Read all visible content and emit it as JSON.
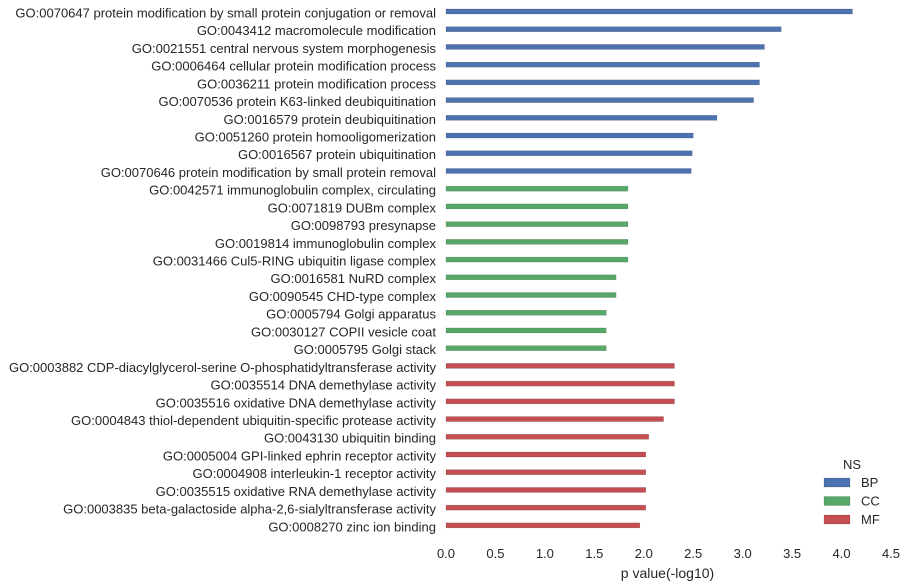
{
  "chart_data": {
    "type": "bar",
    "orientation": "horizontal",
    "xlabel": "p value(-log10)",
    "ylabel": "",
    "xlim": [
      0,
      4.5
    ],
    "xticks": [
      "0.0",
      "0.5",
      "1.0",
      "1.5",
      "2.0",
      "2.5",
      "3.0",
      "3.5",
      "4.0",
      "4.5"
    ],
    "grid": false,
    "legend": {
      "title": "NS",
      "position": "bottom-right",
      "entries": [
        {
          "name": "BP",
          "color": "#4c72b0"
        },
        {
          "name": "CC",
          "color": "#55a868"
        },
        {
          "name": "MF",
          "color": "#c44e52"
        }
      ]
    },
    "categories": [
      "GO:0070647 protein modification by small protein conjugation or removal",
      "GO:0043412 macromolecule modification",
      "GO:0021551 central nervous system morphogenesis",
      "GO:0006464 cellular protein modification process",
      "GO:0036211 protein modification process",
      "GO:0070536 protein K63-linked deubiquitination",
      "GO:0016579 protein deubiquitination",
      "GO:0051260 protein homooligomerization",
      "GO:0016567 protein ubiquitination",
      "GO:0070646 protein modification by small protein removal",
      "GO:0042571 immunoglobulin complex, circulating",
      "GO:0071819 DUBm complex",
      "GO:0098793 presynapse",
      "GO:0019814 immunoglobulin complex",
      "GO:0031466 Cul5-RING ubiquitin ligase complex",
      "GO:0016581 NuRD complex",
      "GO:0090545 CHD-type complex",
      "GO:0005794 Golgi apparatus",
      "GO:0030127 COPII vesicle coat",
      "GO:0005795 Golgi stack",
      "GO:0003882 CDP-diacylglycerol-serine O-phosphatidyltransferase activity",
      "GO:0035514 DNA demethylase activity",
      "GO:0035516 oxidative DNA demethylase activity",
      "GO:0004843 thiol-dependent ubiquitin-specific protease activity",
      "GO:0043130 ubiquitin binding",
      "GO:0005004 GPI-linked ephrin receptor activity",
      "GO:0004908 interleukin-1 receptor activity",
      "GO:0035515 oxidative RNA demethylase activity",
      "GO:0003835 beta-galactoside alpha-2,6-sialyltransferase activity",
      "GO:0008270 zinc ion binding"
    ],
    "values": [
      4.11,
      3.39,
      3.22,
      3.17,
      3.17,
      3.11,
      2.74,
      2.5,
      2.49,
      2.48,
      1.84,
      1.84,
      1.84,
      1.84,
      1.84,
      1.72,
      1.72,
      1.62,
      1.62,
      1.62,
      2.31,
      2.31,
      2.31,
      2.2,
      2.05,
      2.02,
      2.02,
      2.02,
      2.02,
      1.96
    ],
    "groups": [
      "BP",
      "BP",
      "BP",
      "BP",
      "BP",
      "BP",
      "BP",
      "BP",
      "BP",
      "BP",
      "CC",
      "CC",
      "CC",
      "CC",
      "CC",
      "CC",
      "CC",
      "CC",
      "CC",
      "CC",
      "MF",
      "MF",
      "MF",
      "MF",
      "MF",
      "MF",
      "MF",
      "MF",
      "MF",
      "MF"
    ]
  }
}
